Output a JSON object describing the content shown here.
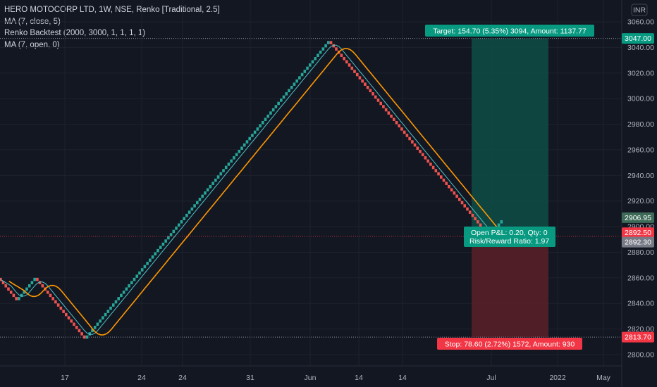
{
  "legend": {
    "symbol_line": "HERO MOTOCORP LTD, 1W, NSE, Renko [Traditional, 2.5]",
    "ma_close": "MA (7, close, 5)",
    "backtest": "Renko Backtest (2000, 3000, 1, 1, 1, 1)",
    "ma_open": "MA (7, open, 0)"
  },
  "currency": "INR",
  "position": {
    "target_text": "Target: 154.70 (5.35%) 3094, Amount: 1137.77",
    "stop_text": "Stop: 78.60 (2.72%) 1572, Amount: 930",
    "pnl_text": "Open P&L: 0.20, Qty: 0",
    "rr_text": "Risk/Reward Ratio: 1.97",
    "target_price": 3047.0,
    "entry_price": 2892.3,
    "stop_price": 2813.7
  },
  "price_tags": [
    {
      "label": "3047.00",
      "value": 3047.0,
      "color": "#089981"
    },
    {
      "label": "2906.95",
      "value": 2906.95,
      "color": "#3d6b58"
    },
    {
      "label": "2892.50",
      "value": 2892.5,
      "color": "#f23645"
    },
    {
      "label": "2892.30",
      "value": 2892.3,
      "color": "#787b86"
    },
    {
      "label": "2813.70",
      "value": 2813.7,
      "color": "#f23645"
    }
  ],
  "colors": {
    "up_brick": "#26a69a",
    "down_brick": "#ef5350",
    "ma_close": "#4fc3c9",
    "ma_open": "#ff9800",
    "target_zone": "#0f4d46",
    "stop_zone": "#5a2027"
  },
  "chart_data": {
    "type": "renko",
    "brick_size": 2.5,
    "y_ticks": [
      "3060.00",
      "3040.00",
      "3020.00",
      "3000.00",
      "2980.00",
      "2960.00",
      "2940.00",
      "2920.00",
      "2900.00",
      "2880.00",
      "2860.00",
      "2840.00",
      "2820.00",
      "2800.00"
    ],
    "y_tick_values": [
      3060,
      3040,
      3020,
      3000,
      2980,
      2960,
      2940,
      2920,
      2900,
      2880,
      2860,
      2840,
      2820,
      2800
    ],
    "ylim": [
      2793,
      3074
    ],
    "x_ticks": [
      "17",
      "24",
      "24",
      "31",
      "Jun",
      "14",
      "14",
      "Jul",
      "2022",
      "May"
    ],
    "bricks_series": [
      {
        "direction": "down",
        "from": 2860.0,
        "to": 2842.5
      },
      {
        "direction": "up",
        "from": 2842.5,
        "to": 2860.0
      },
      {
        "direction": "down",
        "from": 2860.0,
        "to": 2812.5
      },
      {
        "direction": "up",
        "from": 2812.5,
        "to": 3045.0
      },
      {
        "direction": "down",
        "from": 3045.0,
        "to": 2892.5
      },
      {
        "direction": "up",
        "from": 2892.5,
        "to": 2905.0
      }
    ],
    "series": [
      {
        "name": "MA (7, close, 5)"
      },
      {
        "name": "MA (7, open, 0)"
      }
    ]
  }
}
